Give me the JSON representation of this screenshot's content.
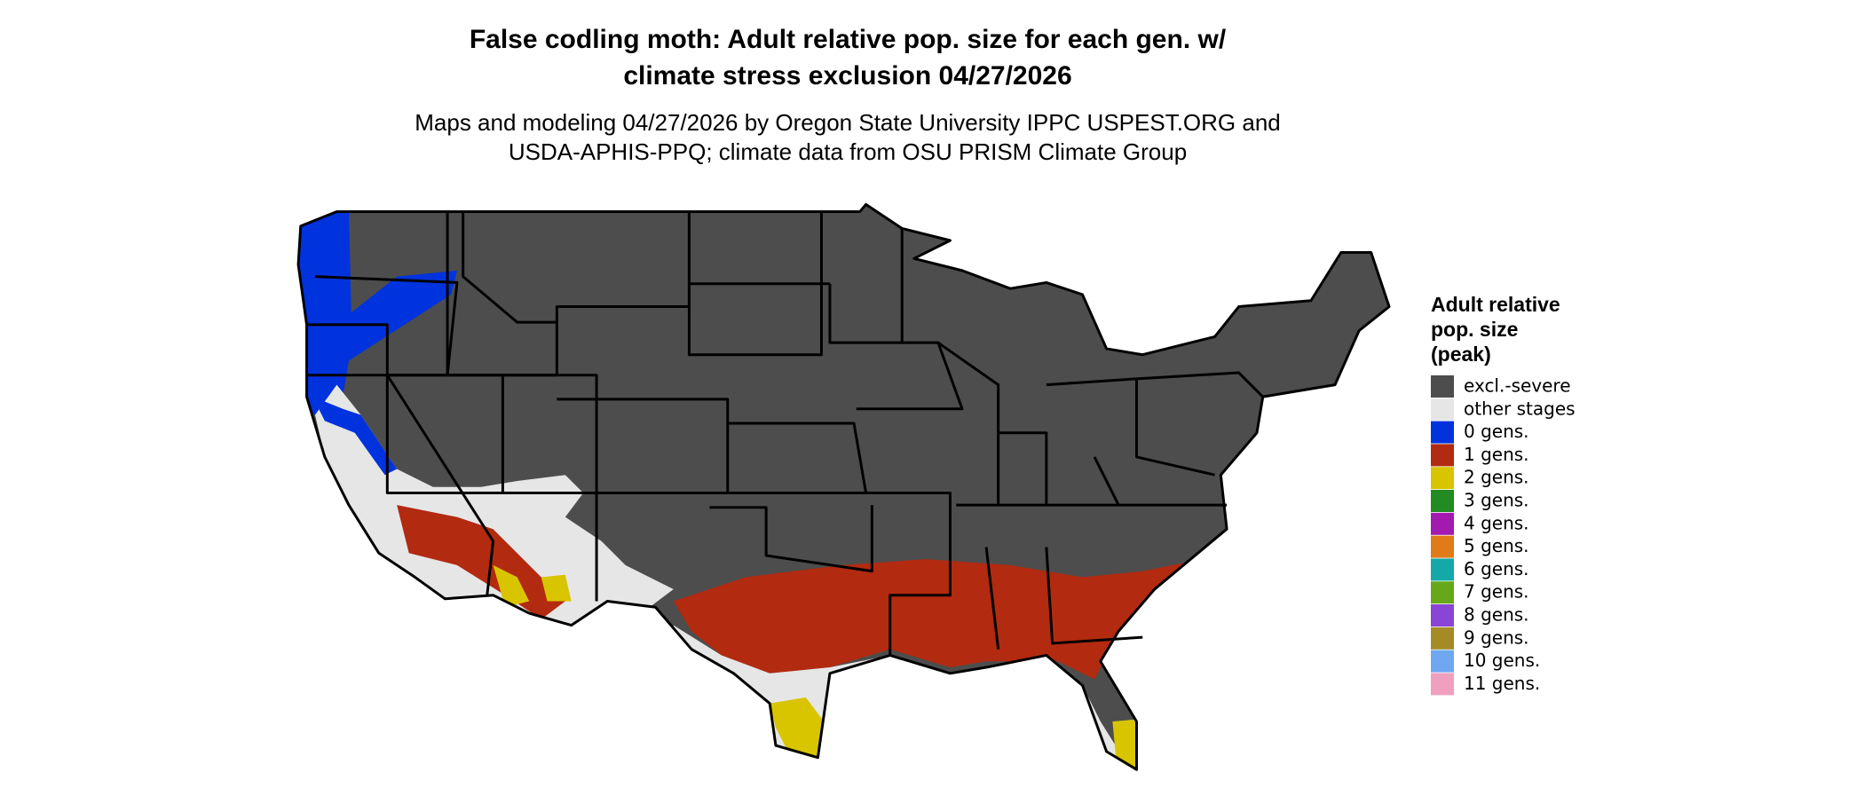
{
  "title": [
    "False codling moth: Adult relative pop. size for each gen. w/",
    "climate stress exclusion 04/27/2026"
  ],
  "subtitle": [
    "Maps and modeling 04/27/2026 by Oregon State University IPPC USPEST.ORG and",
    "USDA-APHIS-PPQ; climate data from OSU PRISM Climate Group"
  ],
  "legend": {
    "title": [
      "Adult relative",
      "pop. size",
      "(peak)"
    ],
    "items": [
      {
        "label": "excl.-severe",
        "color": "#4d4d4d"
      },
      {
        "label": "other stages",
        "color": "#e6e6e6"
      },
      {
        "label": "0 gens.",
        "color": "#0033dd"
      },
      {
        "label": "1 gens.",
        "color": "#b22a10"
      },
      {
        "label": "2 gens.",
        "color": "#d9c400"
      },
      {
        "label": "3 gens.",
        "color": "#228b22"
      },
      {
        "label": "4 gens.",
        "color": "#a31ab0"
      },
      {
        "label": "5 gens.",
        "color": "#e07b17"
      },
      {
        "label": "6 gens.",
        "color": "#14a8a8"
      },
      {
        "label": "7 gens.",
        "color": "#66a81a"
      },
      {
        "label": "8 gens.",
        "color": "#8a44d6"
      },
      {
        "label": "9 gens.",
        "color": "#a48b26"
      },
      {
        "label": "10 gens.",
        "color": "#6fa8f0"
      },
      {
        "label": "11 gens.",
        "color": "#f0a0be"
      }
    ]
  }
}
